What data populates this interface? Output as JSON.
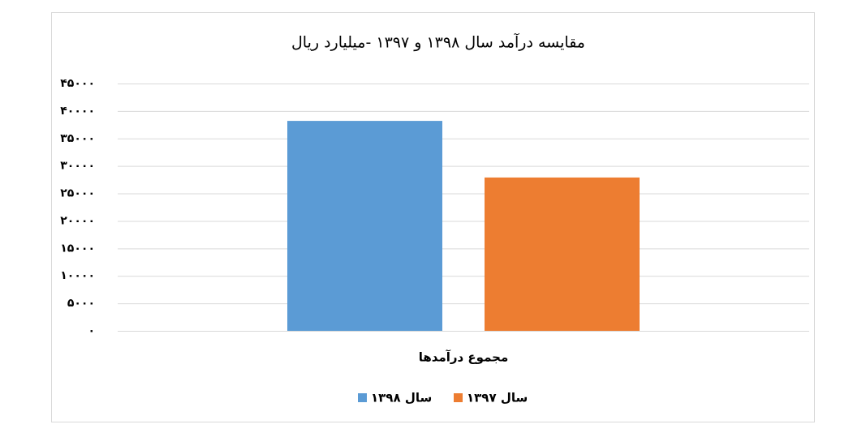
{
  "chart_data": {
    "type": "bar",
    "title": "مقایسه درآمد سال ۱۳۹۸ و ۱۳۹۷ -میلیارد ریال",
    "categories": [
      "مجموع درآمدها"
    ],
    "series": [
      {
        "name": "سال ۱۳۹۸",
        "color": "#5b9bd5",
        "values": [
          38200
        ]
      },
      {
        "name": "سال ۱۳۹۷",
        "color": "#ed7d31",
        "values": [
          27900
        ]
      }
    ],
    "ylim": [
      0,
      45000
    ],
    "yticks": [
      {
        "value": 0,
        "label": "۰"
      },
      {
        "value": 5000,
        "label": "۵۰۰۰"
      },
      {
        "value": 10000,
        "label": "۱۰۰۰۰"
      },
      {
        "value": 15000,
        "label": "۱۵۰۰۰"
      },
      {
        "value": 20000,
        "label": "۲۰۰۰۰"
      },
      {
        "value": 25000,
        "label": "۲۵۰۰۰"
      },
      {
        "value": 30000,
        "label": "۳۰۰۰۰"
      },
      {
        "value": 35000,
        "label": "۳۵۰۰۰"
      },
      {
        "value": 40000,
        "label": "۴۰۰۰۰"
      },
      {
        "value": 45000,
        "label": "۴۵۰۰۰"
      }
    ],
    "grid": true
  }
}
